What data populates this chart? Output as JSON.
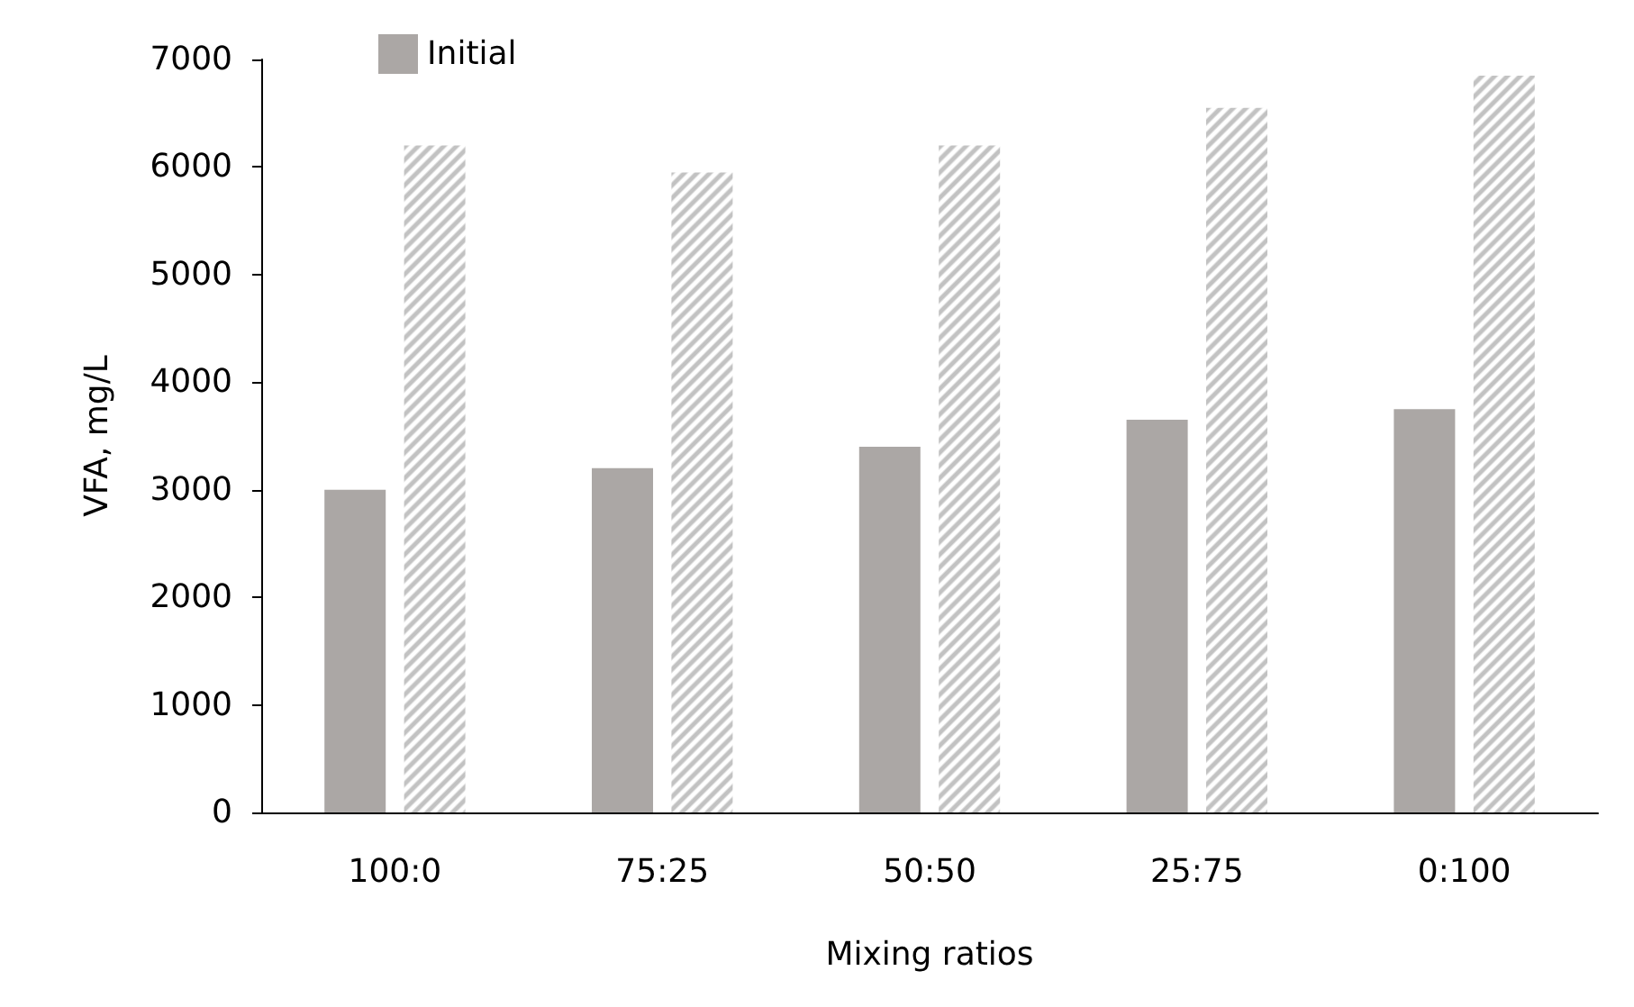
{
  "chart_data": {
    "type": "bar",
    "xlabel": "Mixing ratios",
    "ylabel": "VFA, mg/L",
    "categories": [
      "100:0",
      "75:25",
      "50:50",
      "25:75",
      "0:100"
    ],
    "series": [
      {
        "name": "Initial",
        "color": "#aba7a5",
        "values": [
          3000,
          3200,
          3400,
          3650,
          3750
        ]
      },
      {
        "color": "#b3b3b3",
        "values": [
          6200,
          5950,
          6200,
          6550,
          6850
        ]
      }
    ],
    "ylim": [
      0,
      7000
    ],
    "yticks": [
      0,
      1000,
      2000,
      3000,
      4000,
      5000,
      6000,
      7000
    ],
    "grid": false,
    "legend": "top left"
  }
}
